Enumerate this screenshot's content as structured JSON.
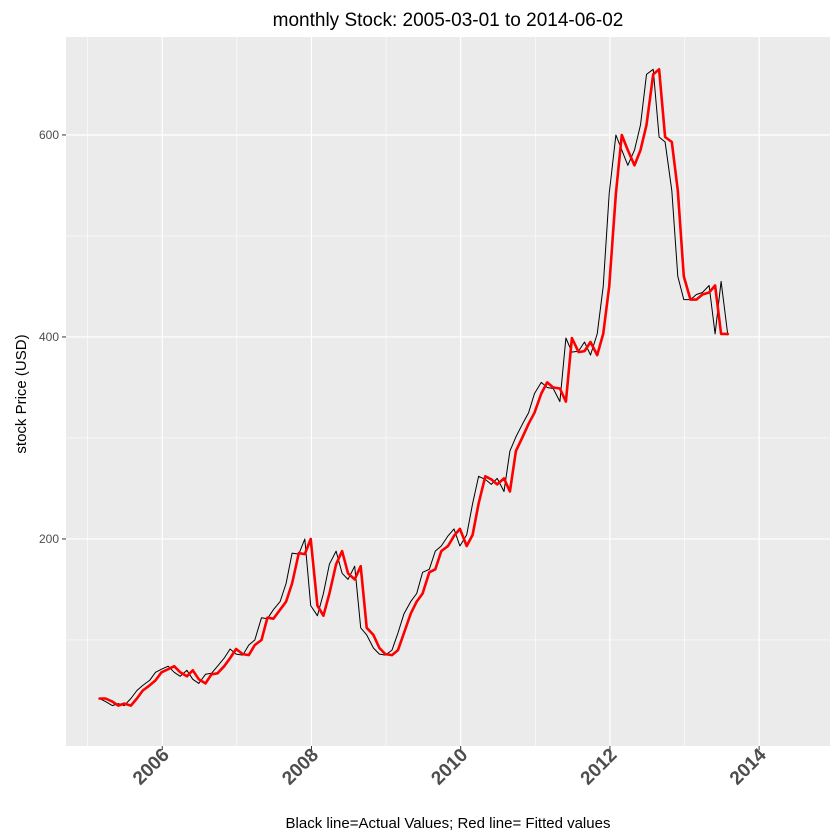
{
  "chart_data": {
    "type": "line",
    "title": "monthly Stock: 2005-03-01 to 2014-06-02",
    "xlabel": "Black line=Actual Values; Red line= Fitted values",
    "ylabel": "stock Price (USD)",
    "xlim": [
      2004.71,
      2014.95
    ],
    "ylim": [
      -5,
      697
    ],
    "x_ticks": [
      2006,
      2008,
      2010,
      2012,
      2014
    ],
    "x_tick_labels": [
      "2006",
      "2008",
      "2010",
      "2012",
      "2014"
    ],
    "y_ticks": [
      200,
      400,
      600
    ],
    "y_tick_labels": [
      "200",
      "400",
      "600"
    ],
    "grid": true,
    "legend": "none",
    "colors": {
      "panel": "#ebebeb",
      "grid": "#ffffff",
      "actual": "#000000",
      "fitted": "#ff0000"
    },
    "series": [
      {
        "role": "actual",
        "x": [
          2005.16,
          2005.24,
          2005.33,
          2005.41,
          2005.49,
          2005.58,
          2005.66,
          2005.74,
          2005.83,
          2005.91,
          2005.99,
          2006.08,
          2006.16,
          2006.24,
          2006.33,
          2006.41,
          2006.49,
          2006.58,
          2006.66,
          2006.74,
          2006.83,
          2006.91,
          2006.99,
          2007.08,
          2007.16,
          2007.24,
          2007.33,
          2007.41,
          2007.49,
          2007.58,
          2007.66,
          2007.74,
          2007.83,
          2007.91,
          2007.99,
          2008.08,
          2008.16,
          2008.24,
          2008.33,
          2008.41,
          2008.49,
          2008.58,
          2008.66,
          2008.74,
          2008.83,
          2008.91,
          2008.99,
          2009.08,
          2009.16,
          2009.24,
          2009.33,
          2009.41,
          2009.49,
          2009.58,
          2009.66,
          2009.74,
          2009.83,
          2009.91,
          2009.99,
          2010.08,
          2010.16,
          2010.24,
          2010.33,
          2010.41,
          2010.49,
          2010.58,
          2010.66,
          2010.74,
          2010.83,
          2010.91,
          2010.99,
          2011.08,
          2011.16,
          2011.24,
          2011.33,
          2011.41,
          2011.49,
          2011.58,
          2011.66,
          2011.74,
          2011.83,
          2011.91,
          2011.99,
          2012.08,
          2012.16,
          2012.24,
          2012.33,
          2012.41,
          2012.49,
          2012.58,
          2012.66,
          2012.74,
          2012.83,
          2012.91,
          2012.99,
          2013.08,
          2013.16,
          2013.24,
          2013.33,
          2013.41,
          2013.49,
          2013.58
        ],
        "y": [
          42,
          39,
          35,
          37,
          35,
          42,
          50,
          55,
          60,
          68,
          71,
          74,
          68,
          64,
          70,
          61,
          57,
          66,
          67,
          74,
          82,
          91,
          86,
          85,
          95,
          100,
          122,
          121,
          130,
          138,
          156,
          186,
          185,
          200,
          134,
          124,
          146,
          175,
          188,
          166,
          160,
          173,
          112,
          105,
          92,
          86,
          85,
          90,
          107,
          126,
          138,
          146,
          167,
          170,
          188,
          193,
          203,
          210,
          193,
          204,
          235,
          262,
          259,
          254,
          260,
          247,
          287,
          301,
          314,
          325,
          344,
          355,
          350,
          349,
          336,
          399,
          385,
          386,
          395,
          382,
          403,
          450,
          542,
          600,
          585,
          570,
          585,
          610,
          660,
          665,
          598,
          593,
          545,
          460,
          437,
          437,
          442,
          444,
          451,
          403,
          455,
          402
        ]
      },
      {
        "role": "fitted",
        "x": [
          2005.16,
          2005.24,
          2005.33,
          2005.41,
          2005.49,
          2005.58,
          2005.66,
          2005.74,
          2005.83,
          2005.91,
          2005.99,
          2006.08,
          2006.16,
          2006.24,
          2006.33,
          2006.41,
          2006.49,
          2006.58,
          2006.66,
          2006.74,
          2006.83,
          2006.91,
          2006.99,
          2007.08,
          2007.16,
          2007.24,
          2007.33,
          2007.41,
          2007.49,
          2007.58,
          2007.66,
          2007.74,
          2007.83,
          2007.91,
          2007.99,
          2008.08,
          2008.16,
          2008.24,
          2008.33,
          2008.41,
          2008.49,
          2008.58,
          2008.66,
          2008.74,
          2008.83,
          2008.91,
          2008.99,
          2009.08,
          2009.16,
          2009.24,
          2009.33,
          2009.41,
          2009.49,
          2009.58,
          2009.66,
          2009.74,
          2009.83,
          2009.91,
          2009.99,
          2010.08,
          2010.16,
          2010.24,
          2010.33,
          2010.41,
          2010.49,
          2010.58,
          2010.66,
          2010.74,
          2010.83,
          2010.91,
          2010.99,
          2011.08,
          2011.16,
          2011.24,
          2011.33,
          2011.41,
          2011.49,
          2011.58,
          2011.66,
          2011.74,
          2011.83,
          2011.91,
          2011.99,
          2012.08,
          2012.16,
          2012.24,
          2012.33,
          2012.41,
          2012.49,
          2012.58,
          2012.66,
          2012.74,
          2012.83,
          2012.91,
          2012.99,
          2013.08,
          2013.16,
          2013.24,
          2013.33,
          2013.41,
          2013.49,
          2013.58
        ],
        "y": [
          42,
          42,
          39,
          35,
          37,
          35,
          42,
          50,
          55,
          60,
          68,
          71,
          74,
          68,
          64,
          70,
          61,
          57,
          66,
          67,
          74,
          82,
          91,
          86,
          85,
          95,
          100,
          122,
          121,
          130,
          138,
          156,
          186,
          185,
          200,
          134,
          124,
          146,
          175,
          188,
          166,
          160,
          173,
          112,
          105,
          92,
          86,
          85,
          90,
          107,
          126,
          138,
          146,
          167,
          170,
          188,
          193,
          203,
          210,
          193,
          204,
          235,
          262,
          259,
          254,
          260,
          247,
          287,
          301,
          314,
          325,
          344,
          355,
          350,
          349,
          336,
          399,
          385,
          386,
          395,
          382,
          403,
          450,
          542,
          600,
          585,
          570,
          585,
          610,
          660,
          665,
          598,
          593,
          545,
          460,
          437,
          437,
          442,
          444,
          451,
          403,
          403
        ]
      }
    ]
  }
}
